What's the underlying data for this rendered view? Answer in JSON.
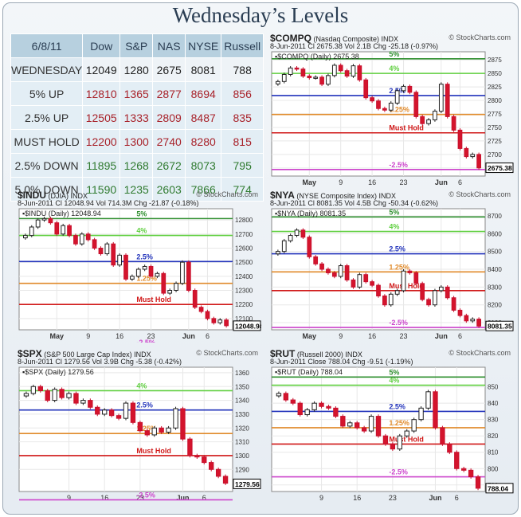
{
  "title": "Wednesday’s Levels",
  "table": {
    "headers": [
      "6/8/11",
      "Dow",
      "S&P",
      "NAS",
      "NYSE",
      "Russell"
    ],
    "rows": [
      {
        "label": "WEDNESDAY",
        "values": [
          "12049",
          "1280",
          "2675",
          "8081",
          "788"
        ],
        "tone": "wed"
      },
      {
        "label": "5% UP",
        "values": [
          "12810",
          "1365",
          "2877",
          "8694",
          "856"
        ],
        "tone": "up"
      },
      {
        "label": "2.5% UP",
        "values": [
          "12505",
          "1333",
          "2809",
          "8487",
          "835"
        ],
        "tone": "up"
      },
      {
        "label": "MUST HOLD",
        "values": [
          "12200",
          "1300",
          "2740",
          "8280",
          "815"
        ],
        "tone": "up"
      },
      {
        "label": "2.5% DOWN",
        "values": [
          "11895",
          "1268",
          "2672",
          "8073",
          "795"
        ],
        "tone": "dn"
      },
      {
        "label": "5.0% DOWN",
        "values": [
          "11590",
          "1235",
          "2603",
          "7866",
          "774"
        ],
        "tone": "dn"
      }
    ]
  },
  "chart_data": [
    {
      "type": "candlestick",
      "symbol": "$COMPQ",
      "name": "(Nasdaq Composite)",
      "exch": "INDX",
      "date": "8-Jun-2011",
      "info": "Cl 2675.38  Vol 2.1B  Chg -25.18 (-0.97%)",
      "sub": "$COMPQ (Daily) 2675.38",
      "ylim": [
        2660,
        2890
      ],
      "yticks": [
        2675,
        2700,
        2725,
        2750,
        2775,
        2800,
        2825,
        2850,
        2875
      ],
      "xticks": [
        {
          "i": 5,
          "label": "May"
        },
        {
          "i": 10,
          "label": "9"
        },
        {
          "i": 15,
          "label": "16"
        },
        {
          "i": 20,
          "label": "23"
        },
        {
          "i": 26,
          "label": "Jun"
        },
        {
          "i": 29,
          "label": "6"
        }
      ],
      "last": "2675.38",
      "levels": [
        {
          "label": "5%",
          "value": 2877,
          "color": "#2f8f2f"
        },
        {
          "label": "4%",
          "value": 2850,
          "color": "#5fcf3f"
        },
        {
          "label": "2.5%",
          "value": 2809,
          "color": "#2233bb"
        },
        {
          "label": "1.25%",
          "value": 2774,
          "color": "#e08a2a"
        },
        {
          "label": "Must Hold",
          "value": 2740,
          "color": "#d01818"
        },
        {
          "label": "-2.5%",
          "value": 2672,
          "color": "#cc44cc"
        }
      ],
      "closes": [
        2835,
        2848,
        2860,
        2858,
        2845,
        2842,
        2843,
        2830,
        2846,
        2865,
        2855,
        2845,
        2864,
        2838,
        2805,
        2799,
        2785,
        2782,
        2795,
        2818,
        2826,
        2815,
        2770,
        2757,
        2764,
        2780,
        2830,
        2770,
        2745,
        2711,
        2696,
        2700,
        2675
      ]
    },
    {
      "type": "candlestick",
      "symbol": "$INDU",
      "name": "(DJIA)",
      "exch": "INDX",
      "date": "8-Jun-2011",
      "info": "Cl 12048.94  Vol 714.3M  Chg -21.87 (-0.18%)",
      "sub": "$INDU (Daily) 12048.94",
      "ylim": [
        12020,
        12880
      ],
      "yticks": [
        12100,
        12200,
        12300,
        12400,
        12500,
        12600,
        12700,
        12800
      ],
      "xticks": [
        {
          "i": 5,
          "label": "May"
        },
        {
          "i": 10,
          "label": "9"
        },
        {
          "i": 15,
          "label": "16"
        },
        {
          "i": 20,
          "label": "23"
        },
        {
          "i": 26,
          "label": "Jun"
        },
        {
          "i": 29,
          "label": "6"
        }
      ],
      "last": "12048.94",
      "levels": [
        {
          "label": "5%",
          "value": 12810,
          "color": "#2f8f2f"
        },
        {
          "label": "4%",
          "value": 12690,
          "color": "#5fcf3f"
        },
        {
          "label": "2.5%",
          "value": 12505,
          "color": "#2233bb"
        },
        {
          "label": "1.25%",
          "value": 12350,
          "color": "#e08a2a"
        },
        {
          "label": "Must Hold",
          "value": 12200,
          "color": "#d01818"
        },
        {
          "label": "-2.5%",
          "value": 11895,
          "color": "#cc44cc"
        }
      ],
      "closes": [
        12690,
        12750,
        12800,
        12810,
        12780,
        12700,
        12760,
        12690,
        12630,
        12700,
        12660,
        12600,
        12560,
        12630,
        12480,
        12550,
        12380,
        12400,
        12450,
        12470,
        12400,
        12420,
        12280,
        12300,
        12350,
        12500,
        12300,
        12180,
        12150,
        12100,
        12070,
        12090,
        12049
      ]
    },
    {
      "type": "candlestick",
      "symbol": "$NYA",
      "name": "(NYSE Composite Index)",
      "exch": "INDX",
      "date": "8-Jun-2011",
      "info": "Cl 8081.35  Vol 4.5B  Chg -50.34 (-0.62%)",
      "sub": "$NYA (Daily) 8081.35",
      "ylim": [
        8060,
        8740
      ],
      "yticks": [
        8100,
        8200,
        8300,
        8400,
        8500,
        8600,
        8700
      ],
      "xticks": [
        {
          "i": 5,
          "label": "May"
        },
        {
          "i": 10,
          "label": "9"
        },
        {
          "i": 15,
          "label": "16"
        },
        {
          "i": 20,
          "label": "23"
        },
        {
          "i": 26,
          "label": "Jun"
        },
        {
          "i": 29,
          "label": "6"
        }
      ],
      "last": "8081.35",
      "levels": [
        {
          "label": "5%",
          "value": 8694,
          "color": "#2f8f2f"
        },
        {
          "label": "4%",
          "value": 8612,
          "color": "#5fcf3f"
        },
        {
          "label": "2.5%",
          "value": 8487,
          "color": "#2233bb"
        },
        {
          "label": "1.25%",
          "value": 8385,
          "color": "#e08a2a"
        },
        {
          "label": "Must Hold",
          "value": 8280,
          "color": "#d01818"
        },
        {
          "label": "-2.5%",
          "value": 8073,
          "color": "#cc44cc"
        }
      ],
      "closes": [
        8500,
        8560,
        8590,
        8620,
        8580,
        8470,
        8430,
        8400,
        8380,
        8360,
        8420,
        8340,
        8300,
        8370,
        8330,
        8310,
        8250,
        8200,
        8260,
        8280,
        8390,
        8380,
        8320,
        8230,
        8200,
        8280,
        8300,
        8240,
        8170,
        8140,
        8110,
        8120,
        8081
      ]
    },
    {
      "type": "candlestick",
      "symbol": "$SPX",
      "name": "(S&P 500 Large Cap Index)",
      "exch": "INDX",
      "date": "8-Jun-2011",
      "info": "Cl 1279.56  Vol 3.9B  Chg -5.38 (-0.42%)",
      "sub": "$SPX (Daily) 1279.56",
      "ylim": [
        1274,
        1364
      ],
      "yticks": [
        1290,
        1300,
        1310,
        1320,
        1330,
        1340,
        1350,
        1360
      ],
      "xticks": [
        {
          "i": 6,
          "label": "9"
        },
        {
          "i": 11,
          "label": "16"
        },
        {
          "i": 16,
          "label": "23"
        },
        {
          "i": 22,
          "label": "Jun"
        },
        {
          "i": 25,
          "label": "6"
        }
      ],
      "last": "1279.56",
      "levels": [
        {
          "label": "4%",
          "value": 1347,
          "color": "#5fcf3f"
        },
        {
          "label": "2.5%",
          "value": 1333,
          "color": "#2233bb"
        },
        {
          "label": "1.25%",
          "value": 1316,
          "color": "#e08a2a"
        },
        {
          "label": "Must Hold",
          "value": 1300,
          "color": "#d01818"
        },
        {
          "label": "-2.5%",
          "value": 1268,
          "color": "#cc44cc"
        }
      ],
      "closes": [
        1345,
        1350,
        1347,
        1340,
        1348,
        1342,
        1345,
        1338,
        1340,
        1335,
        1330,
        1333,
        1329,
        1327,
        1338,
        1324,
        1318,
        1315,
        1320,
        1317,
        1320,
        1334,
        1312,
        1300,
        1299,
        1295,
        1290,
        1285,
        1280
      ]
    },
    {
      "type": "candlestick",
      "symbol": "$RUT",
      "name": "(Russell 2000)",
      "exch": "INDX",
      "date": "8-Jun-2011",
      "info": "Close 788.04  Chg -9.51 (-1.19%)",
      "sub": "$RUT (Daily) 788.04",
      "ylim": [
        786,
        862
      ],
      "yticks": [
        790,
        800,
        810,
        820,
        830,
        840,
        850
      ],
      "xticks": [
        {
          "i": 6,
          "label": "9"
        },
        {
          "i": 11,
          "label": "16"
        },
        {
          "i": 16,
          "label": "23"
        },
        {
          "i": 22,
          "label": "Jun"
        },
        {
          "i": 25,
          "label": "6"
        }
      ],
      "last": "788.04",
      "levels": [
        {
          "label": "5%",
          "value": 856,
          "color": "#2f8f2f"
        },
        {
          "label": "4%",
          "value": 851,
          "color": "#5fcf3f"
        },
        {
          "label": "2.5%",
          "value": 835,
          "color": "#2233bb"
        },
        {
          "label": "1.25%",
          "value": 825,
          "color": "#e08a2a"
        },
        {
          "label": "Must Hold",
          "value": 815,
          "color": "#d01818"
        },
        {
          "label": "-2.5%",
          "value": 795,
          "color": "#cc44cc"
        }
      ],
      "closes": [
        846,
        842,
        840,
        833,
        836,
        840,
        838,
        837,
        832,
        826,
        828,
        825,
        823,
        832,
        820,
        815,
        812,
        820,
        823,
        830,
        837,
        847,
        825,
        815,
        810,
        800,
        799,
        795,
        788
      ]
    }
  ],
  "source_label": "© StockCharts.com"
}
